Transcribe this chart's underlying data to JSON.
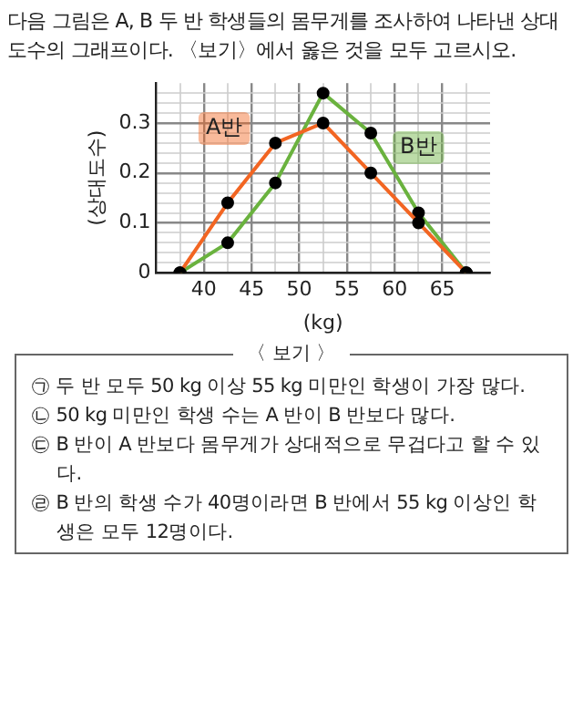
{
  "chart_data": {
    "type": "line",
    "title": "다음 그림은 A, B 두 반 학생들의 몸무게를 조사하여 나타낸 상대도수의 그래프이다. 〈보기〉에서 옳은 것을 모두 고르시오.",
    "xlabel": "(kg)",
    "ylabel": "(상대도수)",
    "x": [
      37.5,
      42.5,
      47.5,
      52.5,
      57.5,
      62.5,
      67.5
    ],
    "series": [
      {
        "name": "A반",
        "color": "#f26522",
        "values": [
          0,
          0.14,
          0.26,
          0.3,
          0.2,
          0.1,
          0
        ]
      },
      {
        "name": "B반",
        "color": "#6ab23e",
        "values": [
          0,
          0.06,
          0.18,
          0.36,
          0.28,
          0.12,
          0
        ]
      }
    ],
    "xlim": [
      35,
      70
    ],
    "xticks": [
      {
        "value": 37.5,
        "label": null
      },
      40,
      {
        "value": 42.5,
        "label": null
      },
      45,
      {
        "value": 47.5,
        "label": null
      },
      50,
      {
        "value": 52.5,
        "label": null
      },
      55,
      {
        "value": 57.5,
        "label": null
      },
      60,
      {
        "value": 62.5,
        "label": null
      },
      65,
      {
        "value": 67.5,
        "label": null
      }
    ],
    "ylim": [
      0,
      0.38
    ],
    "yticks": [
      0,
      {
        "value": 0.02,
        "label": null
      },
      {
        "value": 0.04,
        "label": null
      },
      {
        "value": 0.06,
        "label": null
      },
      {
        "value": 0.08,
        "label": null
      },
      0.1,
      {
        "value": 0.12,
        "label": null
      },
      {
        "value": 0.14,
        "label": null
      },
      {
        "value": 0.16,
        "label": null
      },
      {
        "value": 0.18,
        "label": null
      },
      0.2,
      {
        "value": 0.22,
        "label": null
      },
      {
        "value": 0.24,
        "label": null
      },
      {
        "value": 0.26,
        "label": null
      },
      {
        "value": 0.28,
        "label": null
      },
      0.3,
      {
        "value": 0.32,
        "label": null
      },
      {
        "value": 0.34,
        "label": null
      },
      {
        "value": 0.36,
        "label": null
      }
    ],
    "grid": true,
    "legend": false,
    "marker": "circle",
    "line_style": "solid",
    "annotations": [
      "〈 보기 〉",
      "㉠ 두 반 모두 50 kg 이상 55 kg 미만인 학생이 가장 많다.",
      "㉡ 50 kg 미만인 학생 수는 A 반이 B 반보다 많다.",
      "㉢ B 반이 A 반보다 몸무게가 상대적으로 무겁다고 할 수 있다.",
      "㉣ B 반의 학생 수가 40명이라면 B 반에서 55 kg 이상인 학생은 모두 12명이다."
    ]
  }
}
